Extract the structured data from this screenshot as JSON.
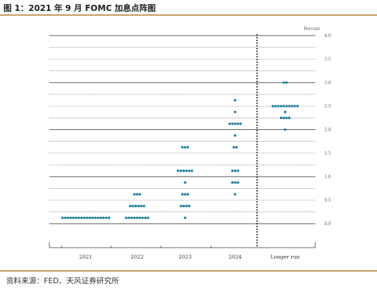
{
  "title": "图 1：2021 年 9 月 FOMC 加息点阵图",
  "source": "资料来源：FED、天风证券研究所",
  "colors": {
    "dot": "#1b7a9e",
    "accent_rule": "#c8955a",
    "grid": "#555555"
  },
  "chart_data": {
    "type": "scatter",
    "ylabel": "Percent",
    "ylim": [
      0,
      4.0
    ],
    "yticks": [
      "0.0",
      "0.5",
      "1.0",
      "1.5",
      "2.0",
      "2.5",
      "3.0",
      "3.5",
      "4.0"
    ],
    "categories": [
      "2021",
      "2022",
      "2023",
      "2024",
      "Longer run"
    ],
    "grid": true,
    "separator_before": "Longer run",
    "counts": [
      [
        {
          "rate": 0.125,
          "count": 18
        }
      ],
      [
        {
          "rate": 0.125,
          "count": 9
        },
        {
          "rate": 0.375,
          "count": 6
        },
        {
          "rate": 0.625,
          "count": 3
        }
      ],
      [
        {
          "rate": 0.125,
          "count": 1
        },
        {
          "rate": 0.375,
          "count": 4
        },
        {
          "rate": 0.625,
          "count": 3
        },
        {
          "rate": 0.875,
          "count": 1
        },
        {
          "rate": 1.125,
          "count": 6
        },
        {
          "rate": 1.625,
          "count": 3
        }
      ],
      [
        {
          "rate": 0.625,
          "count": 1
        },
        {
          "rate": 0.875,
          "count": 3
        },
        {
          "rate": 1.125,
          "count": 3
        },
        {
          "rate": 1.625,
          "count": 2
        },
        {
          "rate": 1.875,
          "count": 1
        },
        {
          "rate": 2.125,
          "count": 5
        },
        {
          "rate": 2.375,
          "count": 1
        },
        {
          "rate": 2.625,
          "count": 1
        }
      ],
      [
        {
          "rate": 2.0,
          "count": 1
        },
        {
          "rate": 2.25,
          "count": 4
        },
        {
          "rate": 2.375,
          "count": 1
        },
        {
          "rate": 2.5,
          "count": 10
        },
        {
          "rate": 3.0,
          "count": 2
        }
      ]
    ]
  }
}
